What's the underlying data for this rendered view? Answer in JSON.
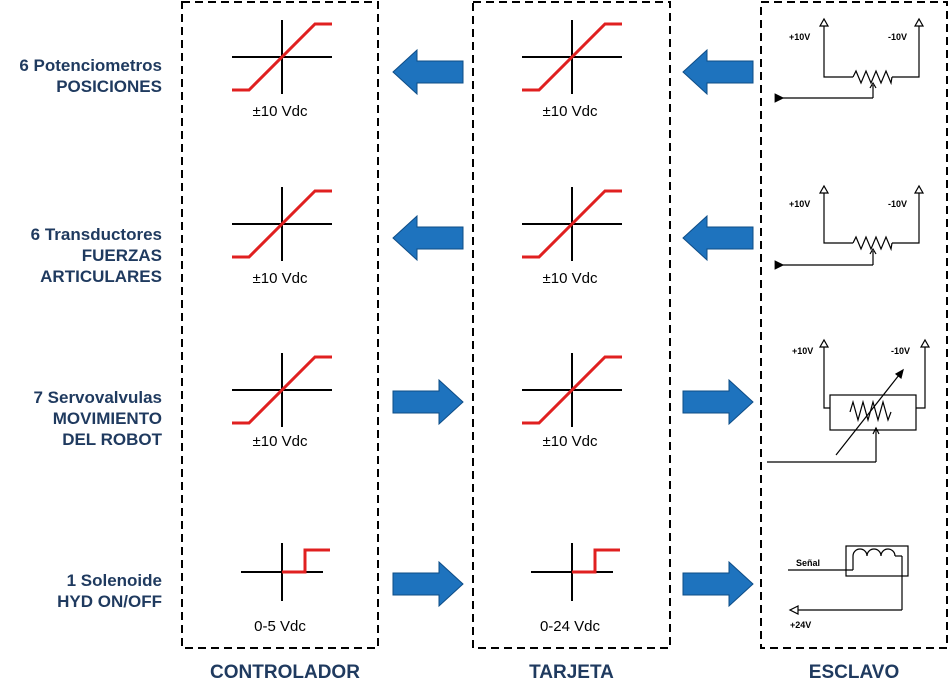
{
  "rows": [
    {
      "line1": "6 Potenciometros",
      "line2": "POSICIONES",
      "line3": ""
    },
    {
      "line1": "6 Transductores",
      "line2": "FUERZAS",
      "line3": "ARTICULARES"
    },
    {
      "line1": "7 Servovalvulas",
      "line2": "MOVIMIENTO",
      "line3": "DEL ROBOT"
    },
    {
      "line1": "1 Solenoide",
      "line2": "HYD ON/OFF",
      "line3": ""
    }
  ],
  "columns": {
    "controlador": "CONTROLADOR",
    "tarjeta": "TARJETA",
    "esclavo": "ESCLAVO"
  },
  "ranges": {
    "controlador": [
      "±10 Vdc",
      "±10 Vdc",
      "±10 Vdc",
      "0-5 Vdc"
    ],
    "tarjeta": [
      "±10 Vdc",
      "±10 Vdc",
      "±10 Vdc",
      "0-24 Vdc"
    ]
  },
  "voltage_labels": {
    "pos": "+10V",
    "neg": "-10V",
    "senal": "Señal",
    "supply": "+24V"
  },
  "arrow_directions": [
    "left",
    "left",
    "right",
    "right"
  ],
  "colors": {
    "label_text": "#1f3a5f",
    "arrow_fill": "#1e73be",
    "curve": "#e02020",
    "border": "#000000"
  }
}
